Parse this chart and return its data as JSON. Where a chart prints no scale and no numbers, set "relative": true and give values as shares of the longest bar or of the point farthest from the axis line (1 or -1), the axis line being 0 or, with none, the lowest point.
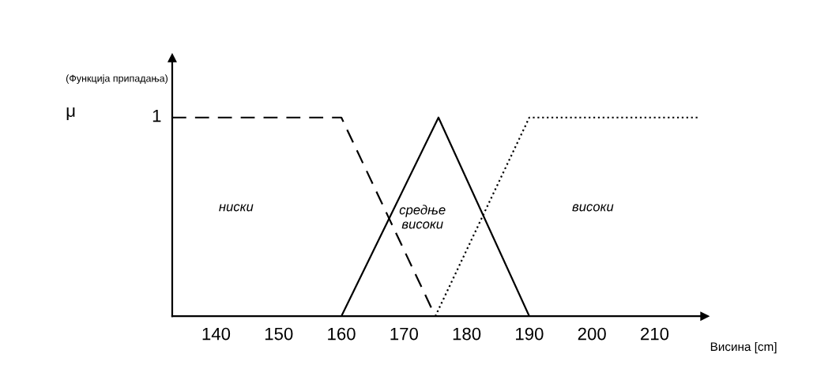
{
  "chart_data": {
    "type": "line",
    "ylabel": "(Функција припадања)",
    "xlabel": "Висина [cm]",
    "xlim": [
      133,
      218
    ],
    "xticks": [
      140,
      150,
      160,
      170,
      180,
      190,
      200,
      210
    ],
    "relative": true,
    "grid": false,
    "legend": false,
    "marker": "none",
    "series": [
      {
        "x": [
          133,
          160,
          175
        ],
        "values": [
          1,
          1,
          0
        ],
        "color": "#000000",
        "line_style": "dashed"
      },
      {
        "x": [
          160,
          175.5,
          190
        ],
        "values": [
          0,
          1,
          0
        ],
        "color": "#000000",
        "line_style": "solid"
      },
      {
        "x": [
          175,
          190,
          217
        ],
        "values": [
          0,
          1,
          1
        ],
        "color": "#000000",
        "line_style": "dotted"
      }
    ],
    "annotations": [
      "μ",
      "1",
      "ниски",
      "средње\nвисоки",
      "високи"
    ]
  }
}
